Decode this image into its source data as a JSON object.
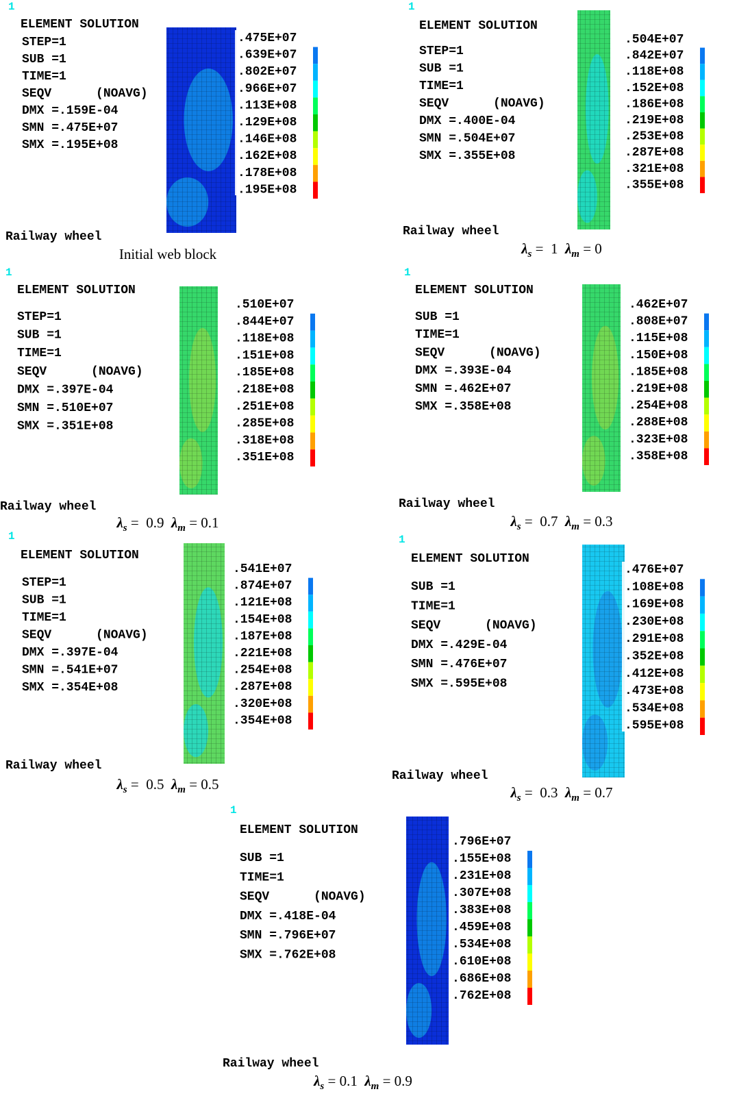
{
  "panels": [
    {
      "number": "1",
      "title": "ELEMENT SOLUTION",
      "info": [
        "STEP=1",
        "SUB =1",
        "TIME=1",
        "SEQV      (NOAVG)",
        "DMX =.159E-04",
        "SMN =.475E+07",
        "SMX =.195E+08"
      ],
      "legend": [
        ".475E+07",
        ".639E+07",
        ".802E+07",
        ".966E+07",
        ".113E+08",
        ".129E+08",
        ".146E+08",
        ".162E+08",
        ".178E+08",
        ".195E+08"
      ],
      "footer": "Railway wheel",
      "caption_text": "Initial web block"
    },
    {
      "number": "1",
      "title": "ELEMENT SOLUTION",
      "info": [
        "STEP=1",
        "SUB =1",
        "TIME=1",
        "SEQV      (NOAVG)",
        "DMX =.400E-04",
        "SMN =.504E+07",
        "SMX =.355E+08"
      ],
      "legend": [
        ".504E+07",
        ".842E+07",
        ".118E+08",
        ".152E+08",
        ".186E+08",
        ".219E+08",
        ".253E+08",
        ".287E+08",
        ".321E+08",
        ".355E+08"
      ],
      "footer": "Railway wheel",
      "caption": [
        {
          "sym": "λ",
          "sub": "s",
          "rhs": " =  1  "
        },
        {
          "sym": "λ",
          "sub": "m",
          "rhs": " = 0"
        }
      ]
    },
    {
      "number": "1",
      "title": "ELEMENT SOLUTION",
      "info": [
        "STEP=1",
        "SUB =1",
        "TIME=1",
        "SEQV      (NOAVG)",
        "DMX =.397E-04",
        "SMN =.510E+07",
        "SMX =.351E+08"
      ],
      "legend": [
        ".510E+07",
        ".844E+07",
        ".118E+08",
        ".151E+08",
        ".185E+08",
        ".218E+08",
        ".251E+08",
        ".285E+08",
        ".318E+08",
        ".351E+08"
      ],
      "footer": "Railway wheel",
      "caption": [
        {
          "sym": "λ",
          "sub": "s",
          "rhs": " =  0.9  "
        },
        {
          "sym": "λ",
          "sub": "m",
          "rhs": " = 0.1"
        }
      ]
    },
    {
      "number": "1",
      "title": "ELEMENT SOLUTION",
      "info": [
        "SUB =1",
        "TIME=1",
        "SEQV      (NOAVG)",
        "DMX =.393E-04",
        "SMN =.462E+07",
        "SMX =.358E+08"
      ],
      "legend": [
        ".462E+07",
        ".808E+07",
        ".115E+08",
        ".150E+08",
        ".185E+08",
        ".219E+08",
        ".254E+08",
        ".288E+08",
        ".323E+08",
        ".358E+08"
      ],
      "footer": "Railway wheel",
      "caption": [
        {
          "sym": "λ",
          "sub": "s",
          "rhs": " =  0.7  "
        },
        {
          "sym": "λ",
          "sub": "m",
          "rhs": " = 0.3"
        }
      ]
    },
    {
      "number": "1",
      "title": "ELEMENT SOLUTION",
      "info": [
        "STEP=1",
        "SUB =1",
        "TIME=1",
        "SEQV      (NOAVG)",
        "DMX =.397E-04",
        "SMN =.541E+07",
        "SMX =.354E+08"
      ],
      "legend": [
        ".541E+07",
        ".874E+07",
        ".121E+08",
        ".154E+08",
        ".187E+08",
        ".221E+08",
        ".254E+08",
        ".287E+08",
        ".320E+08",
        ".354E+08"
      ],
      "footer": "Railway wheel",
      "caption": [
        {
          "sym": "λ",
          "sub": "s",
          "rhs": " =  0.5  "
        },
        {
          "sym": "λ",
          "sub": "m",
          "rhs": " = 0.5"
        }
      ]
    },
    {
      "number": "1",
      "title": "ELEMENT SOLUTION",
      "info": [
        "SUB =1",
        "TIME=1",
        "SEQV      (NOAVG)",
        "DMX =.429E-04",
        "SMN =.476E+07",
        "SMX =.595E+08"
      ],
      "legend": [
        ".476E+07",
        ".108E+08",
        ".169E+08",
        ".230E+08",
        ".291E+08",
        ".352E+08",
        ".412E+08",
        ".473E+08",
        ".534E+08",
        ".595E+08"
      ],
      "footer": "Railway wheel",
      "caption": [
        {
          "sym": "λ",
          "sub": "s",
          "rhs": " =  0.3  "
        },
        {
          "sym": "λ",
          "sub": "m",
          "rhs": " = 0.7"
        }
      ]
    },
    {
      "number": "1",
      "title": "ELEMENT SOLUTION",
      "info": [
        "SUB =1",
        "TIME=1",
        "SEQV      (NOAVG)",
        "DMX =.418E-04",
        "SMN =.796E+07",
        "SMX =.762E+08"
      ],
      "legend": [
        ".796E+07",
        ".155E+08",
        ".231E+08",
        ".307E+08",
        ".383E+08",
        ".459E+08",
        ".534E+08",
        ".610E+08",
        ".686E+08",
        ".762E+08"
      ],
      "footer": "Railway wheel",
      "caption": [
        {
          "sym": "λ",
          "sub": "s",
          "rhs": " = 0.1  "
        },
        {
          "sym": "λ",
          "sub": "m",
          "rhs": " = 0.9"
        }
      ]
    }
  ]
}
